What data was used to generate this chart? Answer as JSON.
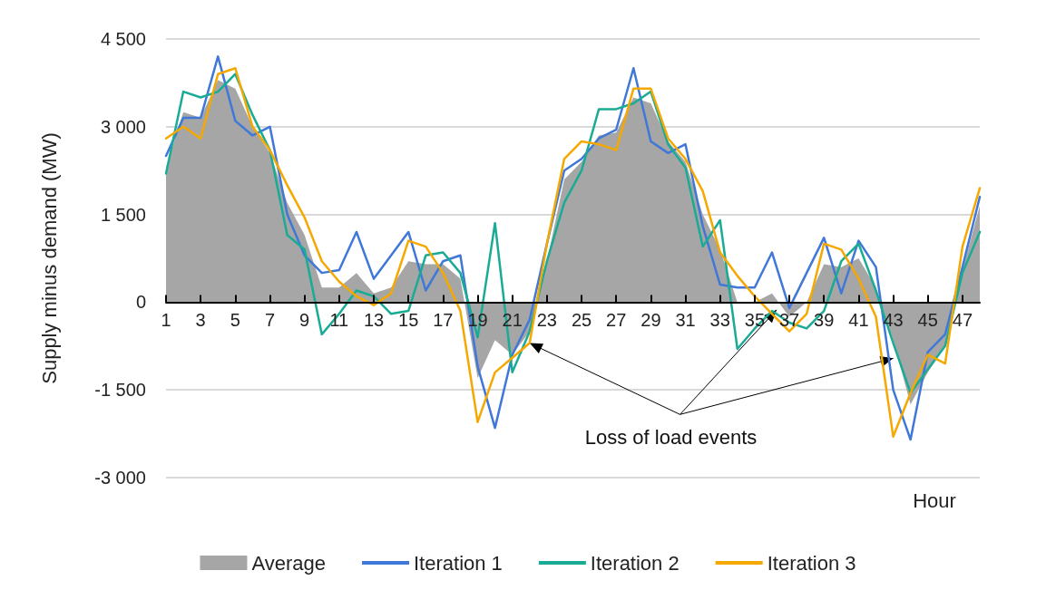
{
  "chart_data": {
    "type": "line",
    "xlabel": "Hour",
    "ylabel": "Supply minus demand (MW)",
    "x": [
      1,
      2,
      3,
      4,
      5,
      6,
      7,
      8,
      9,
      10,
      11,
      12,
      13,
      14,
      15,
      16,
      17,
      18,
      19,
      20,
      21,
      22,
      23,
      24,
      25,
      26,
      27,
      28,
      29,
      30,
      31,
      32,
      33,
      34,
      35,
      36,
      37,
      38,
      39,
      40,
      41,
      42,
      43,
      44,
      45,
      46,
      47,
      48
    ],
    "xlim": [
      1,
      48
    ],
    "xticks": [
      1,
      3,
      5,
      7,
      9,
      11,
      13,
      15,
      17,
      19,
      21,
      23,
      25,
      27,
      29,
      31,
      33,
      35,
      37,
      39,
      41,
      43,
      45,
      47
    ],
    "ylim": [
      -3000,
      4500
    ],
    "yticks": [
      {
        "value": -3000,
        "label": "-3 000"
      },
      {
        "value": -1500,
        "label": "-1 500"
      },
      0,
      {
        "value": 1500,
        "label": "1 500"
      },
      {
        "value": 3000,
        "label": "3 000"
      },
      {
        "value": 4500,
        "label": "4 500"
      }
    ],
    "grid": "y",
    "legend": "bottom",
    "marker": "none",
    "line_style": "solid",
    "series": [
      {
        "name": "Average",
        "type": "area",
        "color": "#a6a6a6",
        "values": [
          2300,
          3250,
          3150,
          3800,
          3650,
          3000,
          2550,
          1700,
          1150,
          250,
          250,
          500,
          150,
          250,
          700,
          650,
          650,
          400,
          -1300,
          -650,
          -900,
          -500,
          700,
          2100,
          2400,
          2850,
          2900,
          3500,
          3400,
          2750,
          2400,
          1500,
          900,
          0,
          0,
          150,
          -250,
          0,
          650,
          600,
          750,
          250,
          -650,
          -1750,
          -1200,
          -750,
          550,
          1650
        ]
      },
      {
        "name": "Iteration 1",
        "color": "#3f78d8",
        "values": [
          2500,
          3150,
          3150,
          4200,
          3100,
          2850,
          3000,
          1500,
          800,
          500,
          550,
          1200,
          400,
          800,
          1200,
          200,
          700,
          800,
          -1100,
          -2150,
          -900,
          -300,
          1000,
          2250,
          2450,
          2800,
          2950,
          4000,
          2750,
          2550,
          2700,
          1300,
          300,
          250,
          250,
          850,
          -100,
          500,
          1100,
          150,
          1050,
          600,
          -1500,
          -2350,
          -850,
          -550,
          600,
          1800
        ]
      },
      {
        "name": "Iteration 2",
        "color": "#1aab95",
        "values": [
          2200,
          3600,
          3500,
          3600,
          3900,
          3200,
          2600,
          1150,
          900,
          -550,
          -200,
          200,
          100,
          -200,
          -150,
          800,
          850,
          500,
          -600,
          1350,
          -1200,
          -500,
          700,
          1700,
          2250,
          3300,
          3300,
          3400,
          3600,
          2700,
          2300,
          950,
          1400,
          -800,
          -450,
          -150,
          -350,
          -450,
          -150,
          700,
          1000,
          200,
          -700,
          -1550,
          -1150,
          -750,
          500,
          1200
        ]
      },
      {
        "name": "Iteration 3",
        "color": "#f5a800",
        "values": [
          2800,
          3000,
          2800,
          3900,
          4000,
          3000,
          2600,
          2000,
          1450,
          700,
          350,
          100,
          -50,
          150,
          1050,
          950,
          500,
          -150,
          -2050,
          -1200,
          -950,
          -700,
          1000,
          2450,
          2750,
          2700,
          2600,
          3650,
          3650,
          2800,
          2450,
          1900,
          850,
          450,
          100,
          -200,
          -500,
          -200,
          1000,
          900,
          400,
          -250,
          -2300,
          -1550,
          -900,
          -1050,
          950,
          1950
        ]
      }
    ],
    "annotations": [
      {
        "text": "Loss of load events",
        "x": 22,
        "y": -700
      }
    ]
  }
}
